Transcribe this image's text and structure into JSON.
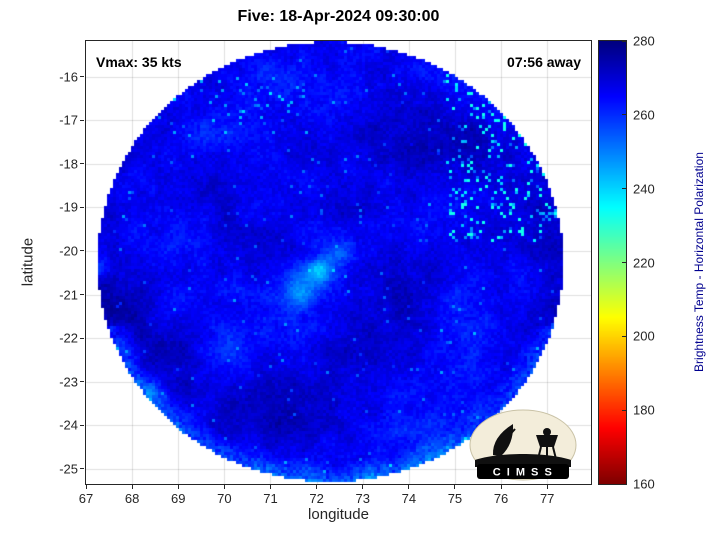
{
  "figure": {
    "title": "Five: 18-Apr-2024 09:30:00",
    "xlabel": "longitude",
    "ylabel": "latitude",
    "annotations": {
      "vmax": "Vmax: 35 kts",
      "eta": "07:56 away"
    }
  },
  "colorbar": {
    "label": "Brightness Temp - Horizontal Polarization",
    "ticks": [
      160,
      180,
      200,
      220,
      240,
      260,
      280
    ],
    "min": 160,
    "max": 280,
    "colormap": "jet-reversed",
    "top_color": "#00007f",
    "bottom_color": "#7f0000"
  },
  "logo": {
    "text": "C I M S S"
  },
  "chart_data": {
    "type": "heatmap",
    "title": "Five: 18-Apr-2024 09:30:00",
    "xlabel": "longitude",
    "ylabel": "latitude",
    "xlim": [
      67.0,
      77.95
    ],
    "ylim": [
      -25.35,
      -15.18
    ],
    "x_ticks": [
      67,
      68,
      69,
      70,
      71,
      72,
      73,
      74,
      75,
      76,
      77
    ],
    "y_ticks": [
      -16,
      -17,
      -18,
      -19,
      -20,
      -21,
      -22,
      -23,
      -24,
      -25
    ],
    "grid": true,
    "value_label": "Brightness Temp - Horizontal Polarization",
    "value_range_K": [
      160,
      280
    ],
    "storm": {
      "name": "Five",
      "vmax_kts": 35,
      "time_to_obs": "07:56 away"
    },
    "swath": {
      "center_lon": 72.3,
      "center_lat": -20.25,
      "radius_deg": 5.05,
      "base_temp_K": 267,
      "observed_temp_range_K": [
        233,
        278
      ]
    },
    "temp_patches": [
      {
        "lon": 72.0,
        "lat": -20.5,
        "r": 0.55,
        "dT": 14
      },
      {
        "lon": 72.05,
        "lat": -20.45,
        "r": 0.22,
        "dT": 14
      },
      {
        "lon": 71.65,
        "lat": -20.95,
        "r": 0.3,
        "dT": 12
      },
      {
        "lon": 72.5,
        "lat": -20.05,
        "r": 0.28,
        "dT": 10
      },
      {
        "lon": 67.35,
        "lat": -20.4,
        "r": 0.25,
        "dT": 10
      },
      {
        "lon": 68.35,
        "lat": -23.25,
        "r": 0.28,
        "dT": 8
      },
      {
        "lon": 70.2,
        "lat": -22.3,
        "r": 0.45,
        "dT": 6
      },
      {
        "lon": 73.8,
        "lat": -21.2,
        "r": 0.9,
        "dT": -6
      },
      {
        "lon": 69.6,
        "lat": -18.6,
        "r": 0.8,
        "dT": -5
      },
      {
        "lon": 71.5,
        "lat": -24.0,
        "r": 0.7,
        "dT": -5
      }
    ],
    "speckle_regions": [
      {
        "lon_min": 74.8,
        "lon_max": 77.9,
        "lat_min": -19.8,
        "lat_max": -15.8,
        "density": 0.12,
        "dT_min": 15,
        "dT_max": 45
      },
      {
        "lon_min": 68.8,
        "lon_max": 71.8,
        "lat_min": -17.4,
        "lat_max": -16.0,
        "density": 0.05,
        "dT_min": 10,
        "dT_max": 25
      }
    ]
  }
}
